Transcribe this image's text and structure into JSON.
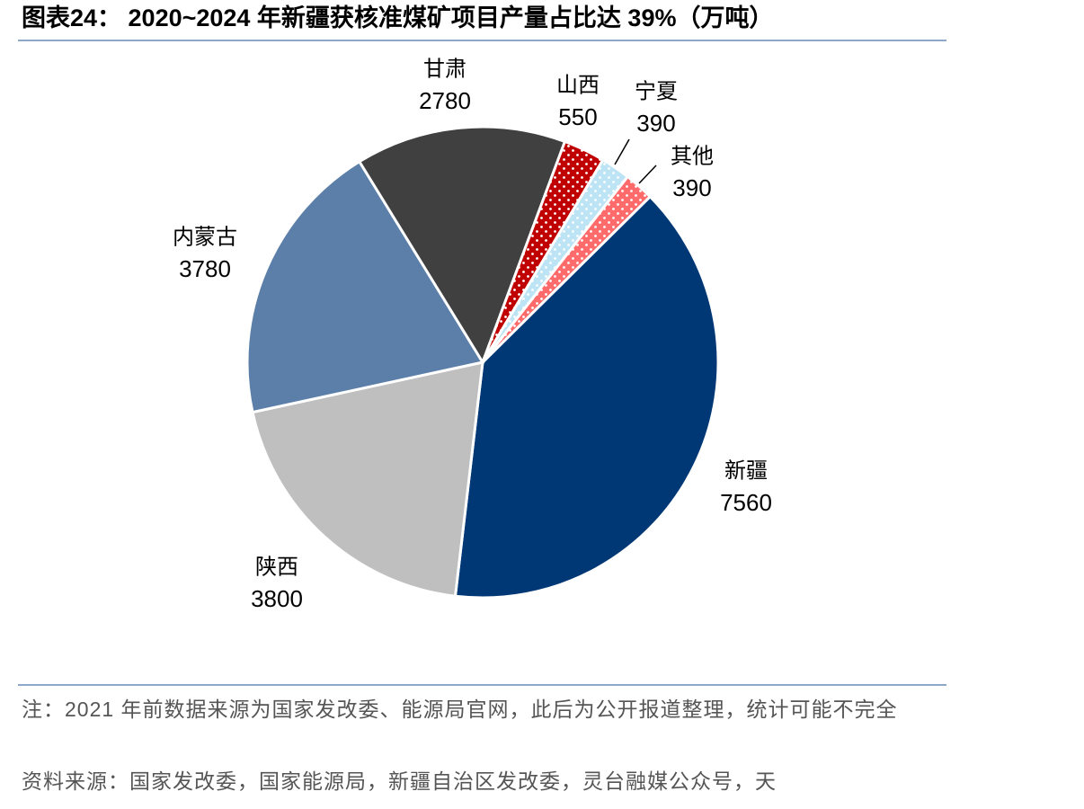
{
  "chart_data": {
    "type": "pie",
    "title": "图表24： 2020~2024 年新疆获核准煤矿项目产量占比达 39%（万吨）",
    "categories": [
      "新疆",
      "陕西",
      "内蒙古",
      "甘肃",
      "山西",
      "宁夏",
      "其他"
    ],
    "values": [
      7560,
      3800,
      3780,
      2780,
      550,
      390,
      390
    ],
    "colors": [
      "#003876",
      "#bfbfbf",
      "#5b7fa8",
      "#404040",
      "#c00000",
      "#bde4f4",
      "#ff6b6b"
    ],
    "dotted": [
      false,
      false,
      false,
      false,
      true,
      true,
      true
    ],
    "note": "注：2021 年前数据来源为国家发改委、能源局官网，此后为公开报道整理，统计可能不完全",
    "source": "资料来源：国家发改委，国家能源局，新疆自治区发改委，灵台融媒公众号，天"
  }
}
